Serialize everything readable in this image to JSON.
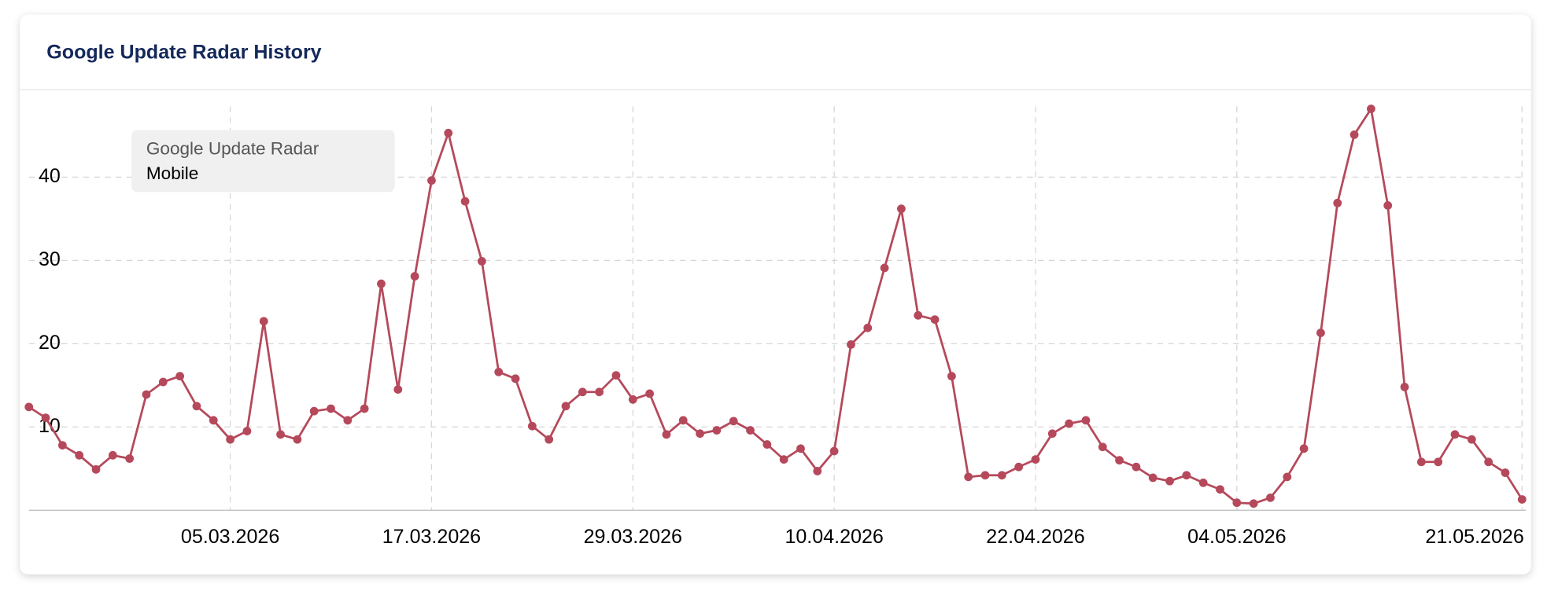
{
  "chart_data": {
    "type": "line",
    "title": "Google Update Radar History",
    "legend_title": "Google Update Radar",
    "legend": "top-left",
    "grid": true,
    "x": [
      "21.02.2026",
      "22.02.2026",
      "23.02.2026",
      "24.02.2026",
      "25.02.2026",
      "26.02.2026",
      "27.02.2026",
      "28.02.2026",
      "01.03.2026",
      "02.03.2026",
      "03.03.2026",
      "04.03.2026",
      "05.03.2026",
      "06.03.2026",
      "07.03.2026",
      "08.03.2026",
      "09.03.2026",
      "10.03.2026",
      "11.03.2026",
      "12.03.2026",
      "13.03.2026",
      "14.03.2026",
      "15.03.2026",
      "16.03.2026",
      "17.03.2026",
      "18.03.2026",
      "19.03.2026",
      "20.03.2026",
      "21.03.2026",
      "22.03.2026",
      "23.03.2026",
      "24.03.2026",
      "25.03.2026",
      "26.03.2026",
      "27.03.2026",
      "28.03.2026",
      "29.03.2026",
      "30.03.2026",
      "31.03.2026",
      "01.04.2026",
      "02.04.2026",
      "03.04.2026",
      "04.04.2026",
      "05.04.2026",
      "06.04.2026",
      "07.04.2026",
      "08.04.2026",
      "09.04.2026",
      "10.04.2026",
      "11.04.2026",
      "12.04.2026",
      "13.04.2026",
      "14.04.2026",
      "15.04.2026",
      "16.04.2026",
      "17.04.2026",
      "18.04.2026",
      "19.04.2026",
      "20.04.2026",
      "21.04.2026",
      "22.04.2026",
      "23.04.2026",
      "24.04.2026",
      "25.04.2026",
      "26.04.2026",
      "27.04.2026",
      "28.04.2026",
      "29.04.2026",
      "30.04.2026",
      "01.05.2026",
      "02.05.2026",
      "03.05.2026",
      "04.05.2026",
      "05.05.2026",
      "06.05.2026",
      "07.05.2026",
      "08.05.2026",
      "09.05.2026",
      "10.05.2026",
      "11.05.2026",
      "12.05.2026",
      "13.05.2026",
      "14.05.2026",
      "15.05.2026",
      "16.05.2026",
      "17.05.2026",
      "18.05.2026",
      "19.05.2026",
      "20.05.2026",
      "21.05.2026"
    ],
    "series": [
      {
        "name": "Mobile",
        "color": "#b5495b",
        "values": [
          12.4,
          11.1,
          7.8,
          6.6,
          4.9,
          6.6,
          6.2,
          13.9,
          15.4,
          16.1,
          12.5,
          10.8,
          8.5,
          9.5,
          22.7,
          9.1,
          8.5,
          11.9,
          12.2,
          10.8,
          12.2,
          27.2,
          14.5,
          28.1,
          39.6,
          45.3,
          37.1,
          29.9,
          16.6,
          15.8,
          10.1,
          8.5,
          12.5,
          14.2,
          14.2,
          16.2,
          13.3,
          14.0,
          9.1,
          10.8,
          9.2,
          9.6,
          10.7,
          9.6,
          7.9,
          6.1,
          7.4,
          4.7,
          7.1,
          19.9,
          21.9,
          29.1,
          36.2,
          23.4,
          22.9,
          16.1,
          4.0,
          4.2,
          4.2,
          5.2,
          6.1,
          9.2,
          10.4,
          10.8,
          7.6,
          6.0,
          5.2,
          3.9,
          3.5,
          4.2,
          3.3,
          2.5,
          0.9,
          0.8,
          1.5,
          4.0,
          7.4,
          21.3,
          36.9,
          45.1,
          48.2,
          36.6,
          14.8,
          5.8,
          5.8,
          9.1,
          8.5,
          5.8,
          4.5,
          1.3
        ]
      }
    ],
    "xlim": [
      "21.02.2026",
      "21.05.2026"
    ],
    "xticks": [
      "05.03.2026",
      "17.03.2026",
      "29.03.2026",
      "10.04.2026",
      "22.04.2026",
      "04.05.2026",
      "21.05.2026"
    ],
    "ylim": [
      0,
      48.5
    ],
    "yticks": [
      10,
      20,
      30,
      40
    ]
  }
}
